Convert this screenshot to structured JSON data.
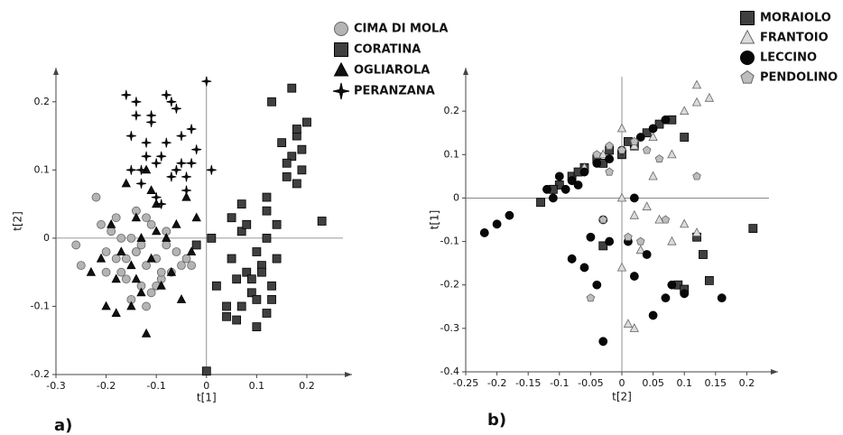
{
  "chart_data": [
    {
      "type": "scatter",
      "panel_label": "a)",
      "xlabel": "t[1]",
      "ylabel": "t[2]",
      "xlim": [
        -0.3,
        0.29
      ],
      "ylim": [
        -0.2,
        0.25
      ],
      "xticks": [
        -0.3,
        -0.2,
        -0.1,
        0,
        0.1,
        0.2
      ],
      "yticks": [
        -0.2,
        -0.1,
        0,
        0.1,
        0.2
      ],
      "series": [
        {
          "name": "CIMA DI MOLA",
          "color": "#b4b4b4",
          "marker": "circle",
          "x": [
            -0.26,
            -0.25,
            -0.22,
            -0.21,
            -0.2,
            -0.19,
            -0.18,
            -0.17,
            -0.16,
            -0.15,
            -0.14,
            -0.13,
            -0.12,
            -0.11,
            -0.1,
            -0.09,
            -0.08,
            -0.07,
            -0.06,
            -0.05,
            -0.04,
            -0.03,
            -0.2,
            -0.17,
            -0.15,
            -0.13,
            -0.11,
            -0.09,
            -0.16,
            -0.12,
            -0.18,
            -0.14,
            -0.1,
            -0.08,
            -0.14,
            -0.12
          ],
          "y": [
            -0.01,
            -0.04,
            0.06,
            0.02,
            -0.02,
            0.01,
            0.03,
            -0.05,
            -0.03,
            0.0,
            -0.02,
            -0.07,
            -0.04,
            -0.08,
            -0.03,
            -0.06,
            0.01,
            -0.05,
            -0.02,
            -0.04,
            -0.03,
            -0.04,
            -0.05,
            0.0,
            -0.09,
            -0.01,
            0.02,
            -0.05,
            -0.06,
            -0.1,
            -0.03,
            0.04,
            -0.07,
            -0.01,
            -0.02,
            0.03
          ]
        },
        {
          "name": "CORATINA",
          "color": "#404040",
          "marker": "square",
          "x": [
            0.0,
            0.02,
            0.04,
            0.05,
            0.06,
            0.07,
            0.08,
            0.09,
            0.1,
            0.11,
            0.12,
            0.13,
            0.14,
            0.06,
            0.08,
            0.1,
            0.12,
            0.07,
            0.09,
            0.11,
            0.13,
            0.05,
            0.1,
            0.12,
            0.14,
            0.16,
            0.17,
            0.18,
            0.19,
            0.2,
            0.15,
            0.17,
            0.18,
            0.19,
            0.13,
            0.16,
            0.18,
            0.12,
            0.01,
            0.07,
            0.23,
            -0.02,
            0.04
          ],
          "y": [
            -0.195,
            -0.07,
            -0.1,
            -0.03,
            -0.06,
            0.01,
            -0.05,
            -0.08,
            -0.02,
            -0.04,
            -0.11,
            -0.07,
            -0.03,
            -0.12,
            0.02,
            -0.09,
            0.0,
            -0.1,
            -0.06,
            -0.05,
            -0.09,
            0.03,
            -0.13,
            0.04,
            0.02,
            0.09,
            0.12,
            0.15,
            0.13,
            0.17,
            0.14,
            0.22,
            0.08,
            0.1,
            0.2,
            0.11,
            0.16,
            0.06,
            0.0,
            0.05,
            0.025,
            -0.01,
            -0.115
          ]
        },
        {
          "name": "OGLIAROLA",
          "color": "#111111",
          "marker": "triangle",
          "x": [
            -0.23,
            -0.21,
            -0.2,
            -0.19,
            -0.18,
            -0.17,
            -0.16,
            -0.15,
            -0.14,
            -0.13,
            -0.12,
            -0.11,
            -0.1,
            -0.09,
            -0.08,
            -0.07,
            -0.06,
            -0.05,
            -0.04,
            -0.03,
            -0.18,
            -0.15,
            -0.12,
            -0.1,
            -0.14,
            -0.11,
            -0.02,
            -0.13
          ],
          "y": [
            -0.05,
            -0.03,
            -0.1,
            0.02,
            -0.06,
            -0.02,
            0.08,
            -0.04,
            0.03,
            -0.08,
            0.1,
            -0.03,
            0.05,
            -0.07,
            0.0,
            -0.05,
            0.02,
            -0.09,
            0.06,
            -0.02,
            -0.11,
            -0.1,
            -0.14,
            0.01,
            -0.06,
            0.07,
            0.03,
            0.0
          ]
        },
        {
          "name": "PERANZANA",
          "color": "#111111",
          "marker": "star",
          "x": [
            -0.16,
            -0.15,
            -0.14,
            -0.13,
            -0.12,
            -0.11,
            -0.1,
            -0.09,
            -0.08,
            -0.07,
            -0.06,
            -0.05,
            -0.04,
            -0.03,
            -0.02,
            -0.15,
            -0.13,
            -0.11,
            -0.09,
            -0.07,
            -0.05,
            -0.03,
            -0.14,
            -0.12,
            -0.08,
            -0.06,
            0.0,
            -0.04,
            -0.1,
            0.01
          ],
          "y": [
            0.21,
            0.15,
            0.2,
            0.1,
            0.14,
            0.17,
            0.06,
            0.12,
            0.21,
            0.09,
            0.19,
            0.11,
            0.07,
            0.16,
            0.13,
            0.1,
            0.08,
            0.18,
            0.05,
            0.2,
            0.15,
            0.11,
            0.18,
            0.12,
            0.14,
            0.1,
            0.23,
            0.09,
            0.11,
            0.1
          ]
        }
      ]
    },
    {
      "type": "scatter",
      "panel_label": "b)",
      "xlabel": "t[2]",
      "ylabel": "t[1]",
      "xlim": [
        -0.25,
        0.25
      ],
      "ylim": [
        -0.4,
        0.3
      ],
      "xticks": [
        -0.25,
        -0.2,
        -0.15,
        -0.1,
        -0.05,
        0,
        0.05,
        0.1,
        0.15,
        0.2
      ],
      "yticks": [
        -0.4,
        -0.3,
        -0.2,
        -0.1,
        0,
        0.1,
        0.2
      ],
      "series": [
        {
          "name": "MORAIOLO",
          "color": "#404040",
          "marker": "square",
          "x": [
            -0.13,
            -0.1,
            -0.08,
            -0.06,
            -0.04,
            -0.02,
            0.0,
            0.02,
            0.04,
            0.06,
            0.08,
            -0.11,
            -0.07,
            -0.03,
            0.01,
            0.1,
            0.09,
            0.1,
            0.13,
            0.14,
            0.21,
            0.12,
            -0.03
          ],
          "y": [
            -0.01,
            0.03,
            0.05,
            0.07,
            0.09,
            0.11,
            0.1,
            0.12,
            0.15,
            0.17,
            0.18,
            0.02,
            0.06,
            0.08,
            0.13,
            0.14,
            -0.2,
            -0.21,
            -0.13,
            -0.19,
            -0.07,
            -0.09,
            -0.11
          ]
        },
        {
          "name": "FRANTOIO",
          "color": "#dcdcdc",
          "marker": "triangle",
          "x": [
            -0.06,
            -0.03,
            0.0,
            0.02,
            0.05,
            0.08,
            0.1,
            0.12,
            0.14,
            0.12,
            0.0,
            0.02,
            0.04,
            0.06,
            0.08,
            0.1,
            0.12,
            0.03,
            0.01,
            0.0,
            0.02,
            0.05
          ],
          "y": [
            0.07,
            0.1,
            0.16,
            0.12,
            0.14,
            0.1,
            0.2,
            0.26,
            0.23,
            0.22,
            0.0,
            -0.04,
            -0.02,
            -0.05,
            -0.1,
            -0.06,
            -0.08,
            -0.12,
            -0.29,
            -0.16,
            -0.3,
            0.05
          ]
        },
        {
          "name": "LECCINO",
          "color": "#080808",
          "marker": "circle",
          "x": [
            -0.22,
            -0.2,
            -0.18,
            -0.12,
            -0.1,
            -0.08,
            -0.06,
            -0.04,
            -0.02,
            0.0,
            0.03,
            0.05,
            0.07,
            -0.11,
            -0.09,
            -0.07,
            -0.05,
            -0.03,
            -0.08,
            -0.06,
            -0.04,
            -0.02,
            0.02,
            0.02,
            0.04,
            0.07,
            0.1,
            0.16,
            -0.03,
            0.01,
            0.05,
            0.08
          ],
          "y": [
            -0.08,
            -0.06,
            -0.04,
            0.02,
            0.05,
            0.04,
            0.06,
            0.08,
            0.09,
            0.11,
            0.14,
            0.16,
            0.18,
            0.0,
            0.02,
            0.03,
            -0.09,
            -0.05,
            -0.14,
            -0.16,
            -0.2,
            -0.1,
            0.0,
            -0.18,
            -0.13,
            -0.23,
            -0.22,
            -0.23,
            -0.33,
            -0.1,
            -0.27,
            -0.2
          ]
        },
        {
          "name": "PENDOLINO",
          "color": "#bdbdbd",
          "marker": "pentagon",
          "x": [
            -0.04,
            -0.02,
            0.0,
            0.02,
            0.06,
            0.12,
            -0.03,
            0.01,
            0.03,
            0.07,
            -0.05,
            0.04,
            -0.02
          ],
          "y": [
            0.1,
            0.12,
            0.11,
            0.13,
            0.09,
            0.05,
            -0.05,
            -0.09,
            -0.1,
            -0.05,
            -0.23,
            0.11,
            0.06
          ]
        }
      ]
    }
  ]
}
